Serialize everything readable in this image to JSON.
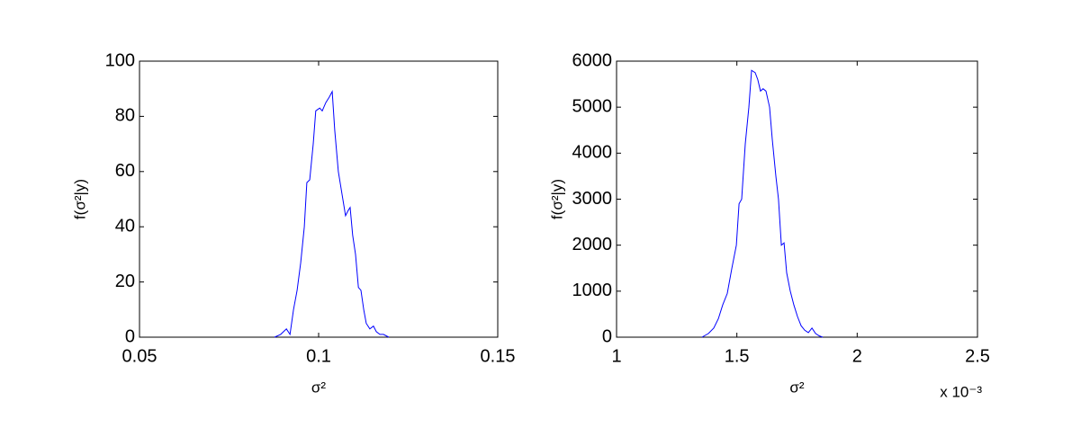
{
  "chart_data": [
    {
      "type": "line",
      "xlabel": "σ²",
      "ylabel": "f(σ²|y)",
      "color": "#0000ff",
      "xlim": [
        0.05,
        0.15
      ],
      "xticks": [
        0.05,
        0.1,
        0.15
      ],
      "ylim": [
        0,
        100
      ],
      "yticks": [
        0,
        20,
        40,
        60,
        80,
        100
      ],
      "x": [
        0.0877,
        0.0894,
        0.091,
        0.092,
        0.093,
        0.094,
        0.095,
        0.096,
        0.0967,
        0.0975,
        0.0985,
        0.0992,
        0.1003,
        0.101,
        0.102,
        0.103,
        0.1038,
        0.1045,
        0.1055,
        0.1065,
        0.1075,
        0.1083,
        0.1088,
        0.1095,
        0.1103,
        0.1111,
        0.1118,
        0.1126,
        0.1133,
        0.1143,
        0.1153,
        0.1161,
        0.1171,
        0.1181,
        0.1196
      ],
      "values": [
        0,
        1,
        3,
        1,
        10,
        17,
        27,
        40,
        56,
        57,
        70,
        82,
        83,
        82,
        85,
        87,
        89,
        75,
        60,
        52,
        44,
        46,
        47,
        37,
        30,
        18,
        17,
        10,
        5,
        3,
        4,
        2,
        1,
        1,
        0
      ]
    },
    {
      "type": "line",
      "xlabel": "σ²",
      "ylabel": "f(σ²|y)",
      "color": "#0000ff",
      "x_multiplier": "x 10⁻³",
      "xlim": [
        1,
        2.5
      ],
      "xticks": [
        1,
        1.5,
        2,
        2.5
      ],
      "ylim": [
        0,
        6000
      ],
      "yticks": [
        0,
        1000,
        2000,
        3000,
        4000,
        5000,
        6000
      ],
      "x": [
        1.355,
        1.382,
        1.404,
        1.423,
        1.441,
        1.46,
        1.479,
        1.498,
        1.509,
        1.52,
        1.535,
        1.55,
        1.561,
        1.576,
        1.587,
        1.598,
        1.609,
        1.621,
        1.636,
        1.647,
        1.662,
        1.673,
        1.685,
        1.696,
        1.707,
        1.722,
        1.737,
        1.752,
        1.767,
        1.782,
        1.797,
        1.812,
        1.827,
        1.842,
        1.857
      ],
      "values": [
        0,
        80,
        200,
        400,
        700,
        950,
        1500,
        2000,
        2900,
        3000,
        4200,
        5000,
        5800,
        5750,
        5600,
        5350,
        5400,
        5350,
        5000,
        4300,
        3500,
        3000,
        2000,
        2050,
        1400,
        1000,
        700,
        450,
        250,
        150,
        100,
        200,
        80,
        30,
        0
      ]
    }
  ]
}
